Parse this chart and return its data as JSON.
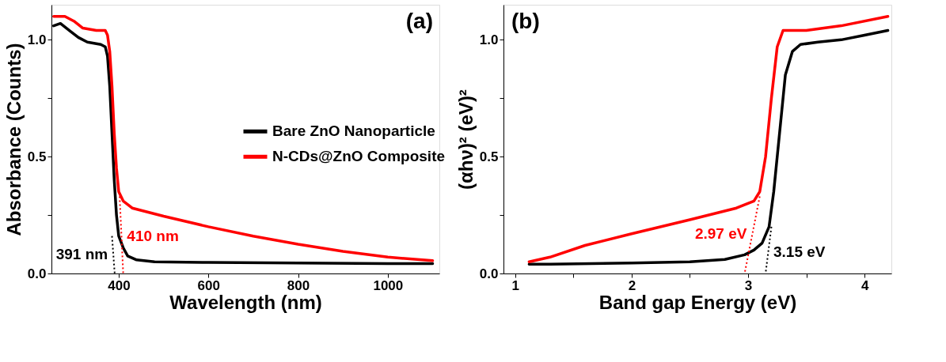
{
  "chart_data": [
    {
      "type": "line",
      "xlabel": "Wavelength (nm)",
      "ylabel": "Absorbance (Counts)",
      "xlim": [
        250,
        1115
      ],
      "ylim": [
        0,
        1.15
      ],
      "xticks": [
        400,
        600,
        800,
        1000
      ],
      "yticks": [
        {
          "value": 0,
          "label": "0.0"
        },
        {
          "value": 0.25,
          "label": null
        },
        {
          "value": 0.5,
          "label": "0.5"
        },
        {
          "value": 0.75,
          "label": null
        },
        {
          "value": 1,
          "label": "1.0"
        }
      ],
      "grid": false,
      "legend": "right",
      "line_style": "solid",
      "annotations": [
        "(a)",
        {
          "text": "391 nm",
          "x": 388,
          "y": 0.08
        },
        {
          "text": "410 nm",
          "x": 406,
          "y": 0.16
        }
      ],
      "series": [
        {
          "name": "Bare ZnO Nanoparticle",
          "color": "#000000",
          "x": [
            255,
            270,
            290,
            310,
            330,
            360,
            370,
            375,
            380,
            385,
            390,
            395,
            400,
            410,
            420,
            440,
            480,
            600,
            800,
            1000,
            1100
          ],
          "values": [
            1.06,
            1.07,
            1.04,
            1.01,
            0.99,
            0.98,
            0.97,
            0.93,
            0.8,
            0.6,
            0.4,
            0.25,
            0.16,
            0.11,
            0.075,
            0.058,
            0.05,
            0.047,
            0.045,
            0.042,
            0.042
          ]
        },
        {
          "name": "N-CDs@ZnO Composite",
          "color": "#ff0000",
          "x": [
            255,
            280,
            300,
            320,
            350,
            370,
            375,
            380,
            385,
            390,
            395,
            400,
            410,
            430,
            500,
            600,
            700,
            800,
            900,
            1000,
            1100
          ],
          "values": [
            1.1,
            1.1,
            1.08,
            1.05,
            1.04,
            1.04,
            1.02,
            0.95,
            0.8,
            0.6,
            0.45,
            0.35,
            0.31,
            0.28,
            0.245,
            0.2,
            0.16,
            0.125,
            0.095,
            0.07,
            0.055
          ]
        },
        {
          "color": "#000000",
          "line_style": "dotted",
          "x": [
            385,
            391
          ],
          "values": [
            0.16,
            0
          ]
        },
        {
          "color": "#ff0000",
          "line_style": "dotted",
          "x": [
            402,
            410
          ],
          "values": [
            0.33,
            0
          ]
        }
      ]
    },
    {
      "type": "line",
      "xlabel": "Band gap Energy (eV)",
      "ylabel": "(αhν)² (eV)²",
      "xlim": [
        0.9,
        4.23
      ],
      "ylim": [
        0,
        1.15
      ],
      "xticks": [
        1,
        {
          "value": 1.5,
          "label": null
        },
        2,
        {
          "value": 2.5,
          "label": null
        },
        3,
        {
          "value": 3.5,
          "label": null
        },
        4
      ],
      "yticks": [
        {
          "value": 0,
          "label": "0.0"
        },
        {
          "value": 0.25,
          "label": null
        },
        {
          "value": 0.5,
          "label": "0.5"
        },
        {
          "value": 0.75,
          "label": null
        },
        {
          "value": 1,
          "label": "1.0"
        }
      ],
      "grid": false,
      "legend": "left",
      "line_style": "solid",
      "annotations": [
        "(b)",
        {
          "text": "2.97 eV",
          "x": 3.037,
          "y": 0.17
        },
        {
          "text": "3.15 eV",
          "x": 3.17,
          "y": 0.09
        }
      ],
      "series": [
        {
          "name": "Bare ZnO Nanoparticle",
          "color": "#000000",
          "x": [
            1.12,
            1.3,
            2.0,
            2.5,
            2.8,
            2.97,
            3.05,
            3.12,
            3.18,
            3.22,
            3.27,
            3.32,
            3.38,
            3.45,
            3.6,
            3.8,
            4.0,
            4.2
          ],
          "values": [
            0.04,
            0.04,
            0.045,
            0.05,
            0.06,
            0.08,
            0.1,
            0.13,
            0.2,
            0.35,
            0.6,
            0.85,
            0.95,
            0.98,
            0.99,
            1.0,
            1.02,
            1.04
          ]
        },
        {
          "name": "N-CDs@ZnO Composite",
          "color": "#ff0000",
          "x": [
            1.12,
            1.3,
            1.6,
            2.0,
            2.5,
            2.9,
            3.05,
            3.1,
            3.15,
            3.2,
            3.25,
            3.3,
            3.5,
            3.8,
            4.2
          ],
          "values": [
            0.05,
            0.07,
            0.12,
            0.17,
            0.23,
            0.28,
            0.31,
            0.35,
            0.5,
            0.75,
            0.97,
            1.04,
            1.04,
            1.06,
            1.1
          ]
        },
        {
          "color": "#000000",
          "line_style": "dotted",
          "x": [
            3.2,
            3.15
          ],
          "values": [
            0.2,
            0
          ]
        },
        {
          "color": "#ff0000",
          "line_style": "dotted",
          "x": [
            3.1,
            2.97
          ],
          "values": [
            0.33,
            0
          ]
        }
      ]
    }
  ]
}
